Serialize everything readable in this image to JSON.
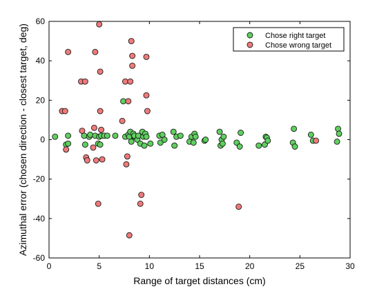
{
  "chart_data": {
    "type": "scatter",
    "xlabel": "Range of target distances (cm)",
    "ylabel": "Azimuthal error (chosen direction - closest target, deg)",
    "xlim": [
      0,
      30
    ],
    "ylim": [
      -60,
      60
    ],
    "xticks": [
      0,
      5,
      10,
      15,
      20,
      25,
      30
    ],
    "yticks": [
      -60,
      -40,
      -20,
      0,
      20,
      40,
      60
    ],
    "grid": false,
    "legend_position": "top-right",
    "series": [
      {
        "name": "Chose right target",
        "color": "#5fcf5f",
        "points": [
          [
            0.6,
            1.5
          ],
          [
            1.7,
            -2.5
          ],
          [
            1.9,
            2
          ],
          [
            1.9,
            -2
          ],
          [
            3.5,
            2
          ],
          [
            3.6,
            -2.5
          ],
          [
            4.0,
            1.5
          ],
          [
            4.1,
            2.5
          ],
          [
            4.6,
            2
          ],
          [
            4.9,
            -2
          ],
          [
            5.0,
            1.5
          ],
          [
            5.1,
            -2.5
          ],
          [
            5.2,
            2
          ],
          [
            5.5,
            2
          ],
          [
            5.8,
            2
          ],
          [
            6.6,
            2
          ],
          [
            7.4,
            19.5
          ],
          [
            7.6,
            1.5
          ],
          [
            7.9,
            2.5
          ],
          [
            8.0,
            1.5
          ],
          [
            8.1,
            4
          ],
          [
            8.2,
            -1
          ],
          [
            8.4,
            3
          ],
          [
            8.5,
            1.5
          ],
          [
            8.5,
            2
          ],
          [
            8.8,
            0
          ],
          [
            8.9,
            2
          ],
          [
            9.1,
            -2
          ],
          [
            9.3,
            4
          ],
          [
            9.4,
            1.5
          ],
          [
            9.5,
            -3
          ],
          [
            9.6,
            3
          ],
          [
            9.7,
            1.5
          ],
          [
            10.1,
            -2
          ],
          [
            11.0,
            2
          ],
          [
            11.1,
            -1.5
          ],
          [
            11.3,
            2.5
          ],
          [
            11.5,
            0
          ],
          [
            12.4,
            4
          ],
          [
            12.5,
            -3
          ],
          [
            12.7,
            1.5
          ],
          [
            13.1,
            2
          ],
          [
            14.0,
            -1
          ],
          [
            14.2,
            1.5
          ],
          [
            14.4,
            -1.5
          ],
          [
            14.5,
            3
          ],
          [
            14.6,
            1.5
          ],
          [
            15.5,
            -0.5
          ],
          [
            15.6,
            0
          ],
          [
            17.0,
            4
          ],
          [
            17.1,
            -3
          ],
          [
            17.2,
            0
          ],
          [
            17.3,
            -2
          ],
          [
            17.4,
            1.5
          ],
          [
            18.7,
            -1.5
          ],
          [
            19.0,
            -3.5
          ],
          [
            19.1,
            3.5
          ],
          [
            20.9,
            -3
          ],
          [
            21.5,
            -2.5
          ],
          [
            21.6,
            1.5
          ],
          [
            21.7,
            1
          ],
          [
            21.8,
            -0.5
          ],
          [
            24.3,
            -1.5
          ],
          [
            24.4,
            5.5
          ],
          [
            24.5,
            -3.5
          ],
          [
            26.1,
            2.5
          ],
          [
            26.3,
            -0.5
          ],
          [
            28.7,
            -1
          ],
          [
            28.8,
            5.5
          ],
          [
            28.9,
            3
          ]
        ]
      },
      {
        "name": "Chose wrong target",
        "color": "#ef7a7a",
        "points": [
          [
            1.3,
            14.5
          ],
          [
            1.6,
            14.5
          ],
          [
            1.7,
            -5
          ],
          [
            1.9,
            44.5
          ],
          [
            3.2,
            29.5
          ],
          [
            3.3,
            4.5
          ],
          [
            3.6,
            29.5
          ],
          [
            3.7,
            -9
          ],
          [
            3.8,
            -10.5
          ],
          [
            4.4,
            -4
          ],
          [
            4.5,
            6
          ],
          [
            4.6,
            44.5
          ],
          [
            4.7,
            -10.5
          ],
          [
            5.0,
            58.5
          ],
          [
            5.1,
            34.5
          ],
          [
            5.1,
            14.5
          ],
          [
            5.2,
            5
          ],
          [
            5.3,
            -10
          ],
          [
            4.9,
            -32.5
          ],
          [
            7.3,
            9.5
          ],
          [
            7.6,
            29.5
          ],
          [
            7.7,
            -12.5
          ],
          [
            7.8,
            -8.5
          ],
          [
            7.9,
            19.5
          ],
          [
            8.0,
            -48.5
          ],
          [
            8.1,
            29.5
          ],
          [
            8.2,
            50
          ],
          [
            8.3,
            42.5
          ],
          [
            8.3,
            37.5
          ],
          [
            9.1,
            -32.5
          ],
          [
            9.2,
            -28
          ],
          [
            9.7,
            22.5
          ],
          [
            9.7,
            42
          ],
          [
            9.8,
            14.5
          ],
          [
            18.9,
            -34
          ],
          [
            26.6,
            -0.5
          ]
        ]
      }
    ]
  }
}
